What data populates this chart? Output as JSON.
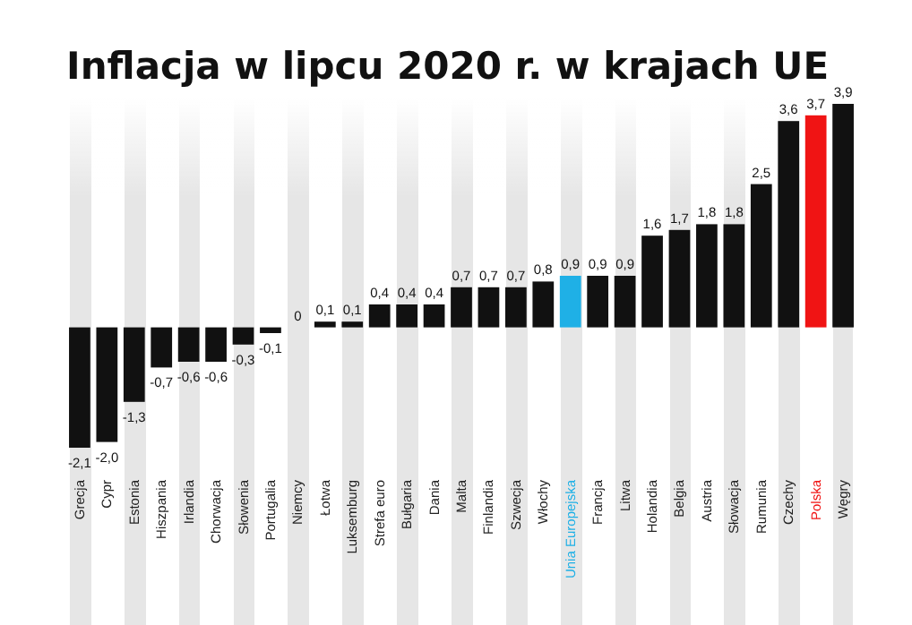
{
  "chart_data": {
    "type": "bar",
    "title": "Inflacja w lipcu 2020 r. w krajach UE",
    "categories": [
      "Grecja",
      "Cypr",
      "Estonia",
      "Hiszpania",
      "Irlandia",
      "Chorwacja",
      "Słowenia",
      "Portugalia",
      "Niemcy",
      "Łotwa",
      "Luksemburg",
      "Strefa euro",
      "Bułgaria",
      "Dania",
      "Malta",
      "Finlandia",
      "Szwecja",
      "Włochy",
      "Unia Europejska",
      "Francja",
      "Litwa",
      "Holandia",
      "Belgia",
      "Austria",
      "Słowacja",
      "Rumunia",
      "Czechy",
      "Polska",
      "Węgry"
    ],
    "values": [
      -2.1,
      -2.0,
      -1.3,
      -0.7,
      -0.6,
      -0.6,
      -0.3,
      -0.1,
      0,
      0.1,
      0.1,
      0.4,
      0.4,
      0.4,
      0.7,
      0.7,
      0.7,
      0.8,
      0.9,
      0.9,
      0.9,
      1.6,
      1.7,
      1.8,
      1.8,
      2.5,
      3.6,
      3.7,
      3.9
    ],
    "value_labels": [
      "-2,1",
      "-2,0",
      "-1,3",
      "-0,7",
      "-0,6",
      "-0,6",
      "-0,3",
      "-0,1",
      "0",
      "0,1",
      "0,1",
      "0,4",
      "0,4",
      "0,4",
      "0,7",
      "0,7",
      "0,7",
      "0,8",
      "0,9",
      "0,9",
      "0,9",
      "1,6",
      "1,7",
      "1,8",
      "1,8",
      "2,5",
      "3,6",
      "3,7",
      "3,9"
    ],
    "colors": [
      "#111111",
      "#111111",
      "#111111",
      "#111111",
      "#111111",
      "#111111",
      "#111111",
      "#111111",
      "#111111",
      "#111111",
      "#111111",
      "#111111",
      "#111111",
      "#111111",
      "#111111",
      "#111111",
      "#111111",
      "#111111",
      "#1fb0e6",
      "#111111",
      "#111111",
      "#111111",
      "#111111",
      "#111111",
      "#111111",
      "#111111",
      "#111111",
      "#f01414",
      "#111111"
    ]
  }
}
